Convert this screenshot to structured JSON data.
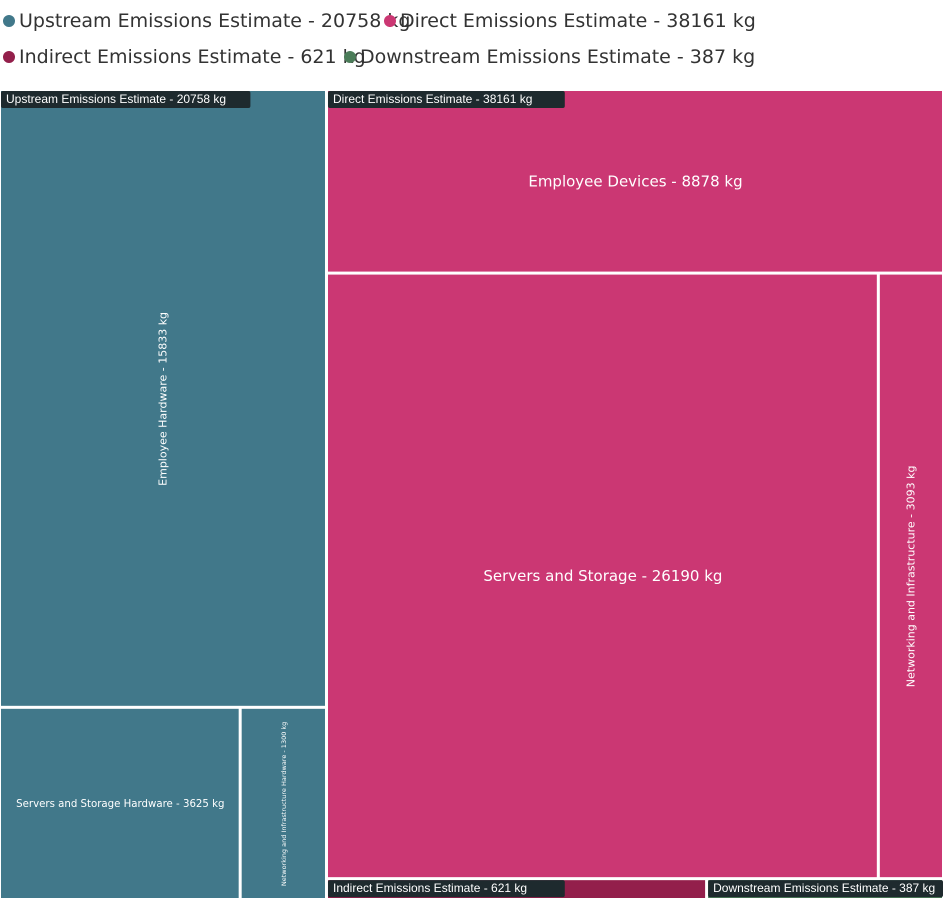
{
  "chart_data": {
    "type": "treemap",
    "legend_placement": "top-left",
    "groups": [
      {
        "name": "Upstream Emissions Estimate - 20758 kg",
        "value": 20758,
        "color": "#41788a",
        "children": [
          {
            "name": "Employee Hardware - 15833 kg",
            "value": 15833
          },
          {
            "name": "Servers and Storage Hardware - 3625 kg",
            "value": 3625
          },
          {
            "name": "Networking and Infrastructure Hardware - 1300 kg",
            "value": 1300
          }
        ]
      },
      {
        "name": "Direct Emissions Estimate - 38161 kg",
        "value": 38161,
        "color": "#cb3773",
        "children": [
          {
            "name": "Employee Devices - 8878 kg",
            "value": 8878
          },
          {
            "name": "Servers and Storage - 26190 kg",
            "value": 26190
          },
          {
            "name": "Networking and Infrastructure - 3093 kg",
            "value": 3093
          }
        ]
      },
      {
        "name": "Indirect Emissions Estimate - 621 kg",
        "value": 621,
        "color": "#931f4b",
        "children": []
      },
      {
        "name": "Downstream Emissions Estimate - 387 kg",
        "value": 387,
        "color": "#4b7c59",
        "children": []
      }
    ]
  }
}
